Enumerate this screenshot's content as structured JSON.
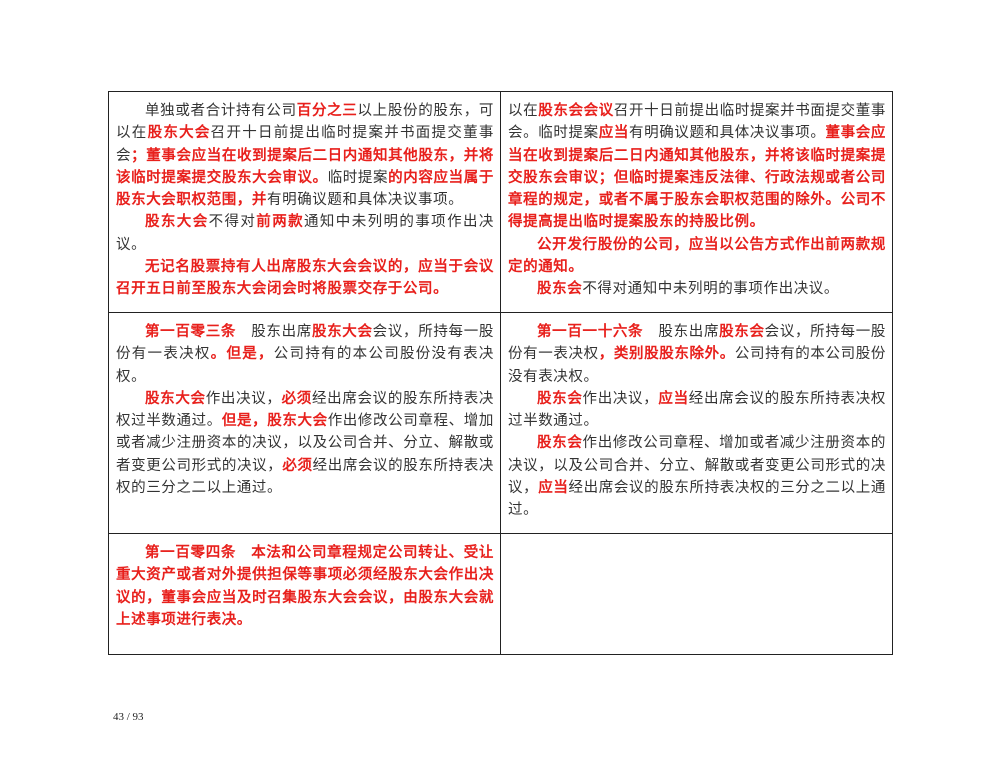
{
  "rows": [
    {
      "left": [
        [
          [
            "单独或者合计持有公司",
            "n"
          ],
          [
            "百分之三",
            "r"
          ],
          [
            "以上股份的股东，可以在",
            "n"
          ],
          [
            "股东大会",
            "r"
          ],
          [
            "召开十日前提出临时提案并书面提交董事会",
            "n"
          ],
          [
            "；董事会应当在收到提案后二日内通知其他股东，并将该临时提案提交股东大会审议。",
            "r"
          ],
          [
            "临时提案",
            "n"
          ],
          [
            "的内容应当属于股东大会职权范围，并",
            "r"
          ],
          [
            "有明确议题和具体决议事项。",
            "n"
          ]
        ],
        [
          [
            "股东大会",
            "r"
          ],
          [
            "不得对",
            "n"
          ],
          [
            "前两款",
            "r"
          ],
          [
            "通知中未列明的事项作出决议。",
            "n"
          ]
        ],
        [
          [
            "无记名股票持有人出席股东大会会议的，应当于会议召开五日前至股东大会闭会时将股票交存于公司。",
            "r"
          ]
        ]
      ],
      "right": [
        [
          [
            "以在",
            "n"
          ],
          [
            "股东会会议",
            "r"
          ],
          [
            "召开十日前提出临时提案并书面提交董事会。临时提案",
            "n"
          ],
          [
            "应当",
            "r"
          ],
          [
            "有明确议题和具体决议事项。",
            "n"
          ],
          [
            "董事会应当在收到提案后二日内通知其他股东，并将该临时提案提交股东会审议；但临时提案违反法律、行政法规或者公司章程的规定，或者不属于股东会职权范围的除外。公司不得提高提出临时提案股东的持股比例。",
            "r"
          ]
        ],
        [
          [
            "公开发行股份的公司，应当以公告方式作出前两款规定的通知。",
            "r"
          ]
        ],
        [
          [
            "股东会",
            "r"
          ],
          [
            "不得对通知中未列明的事项作出决议。",
            "n"
          ]
        ]
      ],
      "right_first_no_indent": true
    },
    {
      "left": [
        [
          [
            "第一百零三条",
            "r"
          ],
          [
            "　股东出席",
            "n"
          ],
          [
            "股东大会",
            "r"
          ],
          [
            "会议，所持每一股份有一表决权",
            "n"
          ],
          [
            "。但是，",
            "r"
          ],
          [
            "公司持有的本公司股份没有表决权。",
            "n"
          ]
        ],
        [
          [
            "股东大会",
            "r"
          ],
          [
            "作出决议，",
            "n"
          ],
          [
            "必须",
            "r"
          ],
          [
            "经出席会议的股东所持表决权过半数通过。",
            "n"
          ],
          [
            "但是，股东大会",
            "r"
          ],
          [
            "作出修改公司章程、增加或者减少注册资本的决议，以及公司合并、分立、解散或者变更公司形式的决议，",
            "n"
          ],
          [
            "必须",
            "r"
          ],
          [
            "经出席会议的股东所持表决权的三分之二以上通过。",
            "n"
          ]
        ]
      ],
      "right": [
        [
          [
            "第一百一十六条",
            "r"
          ],
          [
            "　股东出席",
            "n"
          ],
          [
            "股东会",
            "r"
          ],
          [
            "会议，所持每一股份有一表决权",
            "n"
          ],
          [
            "，类别股股东除外。",
            "r"
          ],
          [
            "公司持有的本公司股份没有表决权。",
            "n"
          ]
        ],
        [
          [
            "股东会",
            "r"
          ],
          [
            "作出决议，",
            "n"
          ],
          [
            "应当",
            "r"
          ],
          [
            "经出席会议的股东所持表决权过半数通过。",
            "n"
          ]
        ],
        [
          [
            "股东会",
            "r"
          ],
          [
            "作出修改公司章程、增加或者减少注册资本的决议，以及公司合并、分立、解散或者变更公司形式的决议，",
            "n"
          ],
          [
            "应当",
            "r"
          ],
          [
            "经出席会议的股东所持表决权的三分之二以上通过。",
            "n"
          ]
        ]
      ]
    },
    {
      "left": [
        [
          [
            "第一百零四条　本法和公司章程规定公司转让、受让重大资产或者对外提供担保等事项必须经股东大会作出决议的，董事会应当及时召集股东大会会议，由股东大会就上述事项进行表决。",
            "r"
          ]
        ]
      ],
      "right": []
    }
  ],
  "footer": {
    "page_number": "43 / 93"
  },
  "colors": {
    "highlight": "#e8201c",
    "text": "#333333"
  }
}
